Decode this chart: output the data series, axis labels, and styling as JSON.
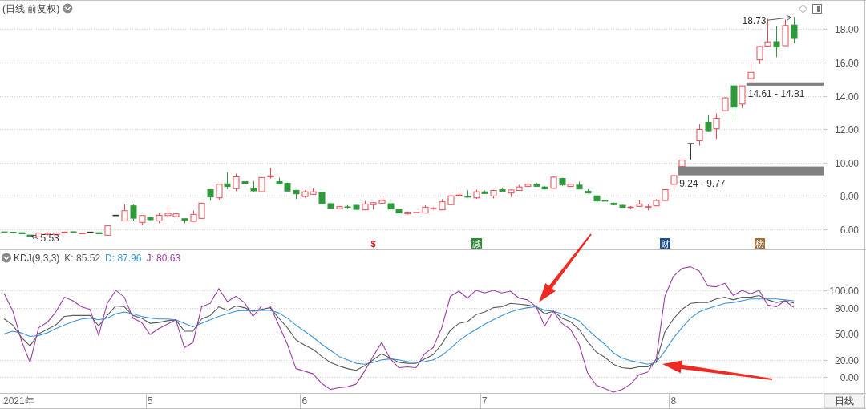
{
  "chart_data": [
    {
      "type": "candlestick",
      "title": "(日线 前复权)",
      "categories": [
        null,
        null,
        null,
        null,
        null,
        null,
        null,
        null,
        null,
        null,
        null,
        null,
        null,
        null,
        null,
        null,
        null,
        null,
        null,
        null,
        null,
        null,
        null,
        null,
        null,
        null,
        null,
        null,
        null,
        null,
        null,
        null,
        null,
        null,
        null,
        null,
        null,
        null,
        null,
        null,
        null,
        null,
        null,
        null,
        null,
        null,
        null,
        null,
        null,
        null,
        null,
        null,
        null,
        null,
        null,
        null,
        null,
        null,
        null,
        null,
        null,
        null,
        null,
        null,
        null,
        null,
        null,
        null,
        null,
        null,
        null,
        null,
        null,
        null,
        null,
        null,
        null,
        null,
        null,
        null,
        null,
        null,
        null,
        null,
        null,
        null,
        null,
        null,
        null,
        null,
        null,
        null,
        null,
        null,
        null,
        null
      ],
      "ohlc": [
        [
          5.85,
          5.87,
          5.82,
          5.83
        ],
        [
          5.83,
          5.84,
          5.8,
          5.81
        ],
        [
          5.8,
          5.82,
          5.72,
          5.74
        ],
        [
          5.66,
          5.7,
          5.53,
          5.58
        ],
        [
          5.56,
          5.8,
          5.54,
          5.78
        ],
        [
          5.7,
          5.82,
          5.64,
          5.77
        ],
        [
          5.68,
          5.8,
          5.66,
          5.78
        ],
        [
          5.8,
          5.85,
          5.79,
          5.84
        ],
        [
          5.86,
          5.88,
          5.83,
          5.84
        ],
        [
          5.75,
          5.78,
          5.73,
          5.77
        ],
        [
          5.84,
          5.86,
          5.82,
          5.84
        ],
        [
          5.8,
          5.82,
          5.72,
          5.74
        ],
        [
          5.65,
          6.23,
          5.64,
          6.21
        ],
        [
          6.85,
          6.85,
          6.85,
          6.85
        ],
        [
          6.51,
          7.49,
          6.48,
          7.12
        ],
        [
          7.41,
          7.49,
          6.53,
          6.67
        ],
        [
          6.42,
          6.85,
          6.26,
          6.83
        ],
        [
          6.71,
          6.74,
          6.55,
          6.58
        ],
        [
          6.51,
          6.98,
          6.37,
          6.85
        ],
        [
          6.83,
          7.33,
          6.69,
          6.96
        ],
        [
          6.77,
          6.95,
          6.61,
          6.93
        ],
        [
          6.64,
          6.66,
          6.37,
          6.55
        ],
        [
          6.48,
          7.12,
          6.45,
          6.9
        ],
        [
          6.66,
          7.58,
          6.64,
          7.57
        ],
        [
          8.38,
          8.4,
          7.73,
          7.94
        ],
        [
          7.89,
          8.72,
          7.77,
          8.7
        ],
        [
          8.73,
          9.42,
          8.41,
          8.57
        ],
        [
          8.44,
          9.34,
          8.3,
          9.15
        ],
        [
          8.86,
          8.91,
          8.57,
          8.76
        ],
        [
          8.47,
          8.89,
          8.25,
          8.31
        ],
        [
          8.26,
          9.13,
          8.24,
          9.11
        ],
        [
          9.15,
          9.69,
          9.05,
          9.21
        ],
        [
          8.86,
          9.1,
          8.7,
          8.73
        ],
        [
          8.76,
          8.8,
          8.28,
          8.3
        ],
        [
          8.34,
          8.38,
          7.81,
          8.13
        ],
        [
          7.97,
          8.34,
          7.89,
          8.25
        ],
        [
          8.1,
          8.46,
          8.06,
          8.25
        ],
        [
          8.22,
          8.26,
          7.46,
          7.54
        ],
        [
          7.54,
          7.56,
          7.25,
          7.27
        ],
        [
          7.24,
          7.38,
          7.22,
          7.36
        ],
        [
          7.35,
          7.46,
          7.22,
          7.33
        ],
        [
          7.44,
          7.46,
          7.19,
          7.2
        ],
        [
          7.17,
          7.7,
          7.15,
          7.52
        ],
        [
          7.48,
          7.64,
          7.2,
          7.6
        ],
        [
          7.57,
          8.01,
          7.55,
          7.73
        ],
        [
          7.54,
          7.73,
          7.09,
          7.22
        ],
        [
          7.22,
          7.24,
          6.88,
          6.98
        ],
        [
          6.93,
          7.07,
          6.9,
          7.04
        ],
        [
          6.99,
          7.03,
          6.96,
          7.02
        ],
        [
          6.98,
          7.44,
          6.96,
          7.33
        ],
        [
          7.24,
          7.33,
          7.19,
          7.26
        ],
        [
          7.17,
          7.81,
          7.15,
          7.65
        ],
        [
          7.48,
          8.05,
          7.46,
          8.01
        ],
        [
          8.03,
          8.3,
          7.98,
          8.06
        ],
        [
          7.96,
          8.34,
          7.9,
          7.94
        ],
        [
          7.89,
          8.38,
          7.82,
          8.25
        ],
        [
          8.25,
          8.33,
          8.12,
          8.15
        ],
        [
          8.01,
          8.38,
          7.85,
          8.33
        ],
        [
          8.38,
          8.45,
          8.25,
          8.28
        ],
        [
          8.18,
          8.4,
          7.93,
          8.36
        ],
        [
          8.33,
          8.66,
          8.31,
          8.54
        ],
        [
          8.58,
          8.78,
          8.56,
          8.7
        ],
        [
          8.7,
          8.78,
          8.55,
          8.58
        ],
        [
          8.54,
          8.58,
          8.4,
          8.42
        ],
        [
          8.46,
          9.18,
          8.44,
          9.13
        ],
        [
          9.05,
          9.1,
          8.62,
          8.66
        ],
        [
          8.57,
          8.74,
          8.54,
          8.7
        ],
        [
          8.65,
          8.86,
          8.4,
          8.42
        ],
        [
          8.28,
          8.41,
          8.15,
          8.18
        ],
        [
          8.01,
          8.03,
          7.62,
          7.7
        ],
        [
          7.72,
          7.82,
          7.59,
          7.69
        ],
        [
          7.57,
          7.6,
          7.45,
          7.48
        ],
        [
          7.44,
          7.47,
          7.3,
          7.32
        ],
        [
          7.31,
          7.4,
          7.25,
          7.34
        ],
        [
          7.38,
          7.73,
          7.36,
          7.52
        ],
        [
          7.33,
          7.5,
          7.14,
          7.36
        ],
        [
          7.41,
          7.81,
          7.39,
          7.73
        ],
        [
          7.73,
          8.4,
          7.71,
          8.38
        ],
        [
          8.7,
          9.24,
          8.34,
          9.22
        ],
        [
          9.77,
          10.17,
          9.77,
          10.15
        ],
        [
          11.15,
          11.15,
          10.19,
          11.15
        ],
        [
          11.31,
          12.31,
          11.02,
          11.99
        ],
        [
          12.42,
          12.84,
          11.87,
          11.91
        ],
        [
          12.04,
          12.95,
          11.43,
          12.66
        ],
        [
          13.11,
          13.91,
          13.08,
          13.88
        ],
        [
          14.6,
          14.61,
          12.55,
          13.32
        ],
        [
          13.51,
          14.61,
          13.27,
          14.6
        ],
        [
          15.04,
          16.05,
          14.81,
          15.41
        ],
        [
          16.16,
          16.99,
          15.92,
          16.96
        ],
        [
          16.99,
          18.62,
          16.95,
          17.24
        ],
        [
          17.25,
          18.17,
          16.32,
          16.93
        ],
        [
          17.01,
          18.57,
          16.99,
          18.22
        ],
        [
          18.25,
          18.73,
          17.16,
          17.44
        ],
        null,
        null,
        null
      ],
      "colors": [
        "#2e9a3c",
        "#2e9a3c",
        "#2e9a3c",
        "#2e9a3c",
        "#e84a55",
        "#e84a55",
        "#e84a55",
        "#e84a55",
        "#2e9a3c",
        "#e84a55",
        "#333333",
        "#2e9a3c",
        "#e84a55",
        "#333333",
        "#e84a55",
        "#2e9a3c",
        "#e84a55",
        "#2e9a3c",
        "#e84a55",
        "#e84a55",
        "#e84a55",
        "#2e9a3c",
        "#e84a55",
        "#e84a55",
        "#2e9a3c",
        "#e84a55",
        "#2e9a3c",
        "#e84a55",
        "#2e9a3c",
        "#2e9a3c",
        "#e84a55",
        "#e84a55",
        "#2e9a3c",
        "#2e9a3c",
        "#2e9a3c",
        "#e84a55",
        "#e84a55",
        "#2e9a3c",
        "#2e9a3c",
        "#e84a55",
        "#2e9a3c",
        "#2e9a3c",
        "#e84a55",
        "#e84a55",
        "#e84a55",
        "#2e9a3c",
        "#2e9a3c",
        "#e84a55",
        "#e84a55",
        "#e84a55",
        "#e84a55",
        "#e84a55",
        "#e84a55",
        "#e84a55",
        "#2e9a3c",
        "#e84a55",
        "#2e9a3c",
        "#e84a55",
        "#2e9a3c",
        "#e84a55",
        "#e84a55",
        "#e84a55",
        "#2e9a3c",
        "#2e9a3c",
        "#e84a55",
        "#2e9a3c",
        "#e84a55",
        "#2e9a3c",
        "#2e9a3c",
        "#2e9a3c",
        "#2e9a3c",
        "#2e9a3c",
        "#2e9a3c",
        "#e84a55",
        "#e84a55",
        "#e84a55",
        "#e84a55",
        "#e84a55",
        "#e84a55",
        "#e84a55",
        "#333333",
        "#e84a55",
        "#2e9a3c",
        "#e84a55",
        "#e84a55",
        "#2e9a3c",
        "#e84a55",
        "#e84a55",
        "#e84a55",
        "#e84a55",
        "#2e9a3c",
        "#e84a55",
        "#2e9a3c",
        null,
        null,
        null
      ],
      "ylim": [
        4.8,
        19.7
      ],
      "yticks": [
        {
          "value": 6,
          "label": "6.00"
        },
        {
          "value": 8,
          "label": "8.00"
        },
        {
          "value": 10,
          "label": "10.00"
        },
        {
          "value": 12,
          "label": "12.00"
        },
        {
          "value": 14,
          "label": "14.00"
        },
        {
          "value": 16,
          "label": "16.00"
        },
        {
          "value": 18,
          "label": "18.00"
        }
      ],
      "grid": "y",
      "tick_labels": "y",
      "bands": [
        {
          "axis": "y",
          "from": 9.24,
          "to": 9.77,
          "label": "9.24 - 9.77",
          "color": "#808080"
        },
        {
          "axis": "y",
          "from": 14.61,
          "to": 14.81,
          "label": "14.61 - 14.81",
          "color": "#808080"
        }
      ],
      "annotations": [
        "18.73",
        "5.53",
        "$",
        "减",
        "财",
        "榜"
      ]
    },
    {
      "type": "line",
      "title": "KDJ(9,3,3)",
      "xlabel": "2021年",
      "categories": [
        null,
        null,
        null,
        null,
        null,
        null,
        null,
        null,
        null,
        null,
        null,
        null,
        null,
        null,
        null,
        null,
        null,
        "5",
        null,
        null,
        null,
        null,
        null,
        null,
        null,
        null,
        null,
        null,
        null,
        null,
        null,
        null,
        null,
        null,
        null,
        "6",
        null,
        null,
        null,
        null,
        null,
        null,
        null,
        null,
        null,
        null,
        null,
        null,
        null,
        null,
        null,
        null,
        null,
        null,
        null,
        null,
        "7",
        null,
        null,
        null,
        null,
        null,
        null,
        null,
        null,
        null,
        null,
        null,
        null,
        null,
        null,
        null,
        null,
        null,
        null,
        null,
        null,
        null,
        "8",
        null,
        null,
        null,
        null,
        null,
        null,
        null,
        null,
        null,
        null,
        null,
        null,
        null,
        null,
        null,
        null,
        null
      ],
      "series": [
        {
          "name": "K: 85.52",
          "color": "#5a5a5a",
          "values": [
            67,
            60,
            46,
            36,
            50,
            55,
            60,
            70,
            71,
            71,
            71,
            59,
            71,
            82,
            81,
            71,
            68,
            62,
            63,
            65,
            66,
            53,
            53,
            67,
            71,
            81,
            77,
            82,
            80,
            76,
            78,
            80,
            68,
            57,
            43,
            37,
            32,
            24,
            17,
            13,
            10,
            8,
            13,
            20,
            27,
            22,
            17,
            16,
            16,
            21,
            26,
            38,
            54,
            62,
            64,
            72,
            75,
            80,
            81,
            85,
            84,
            83,
            81,
            73,
            76,
            68,
            64,
            55,
            41,
            29,
            23,
            15,
            11,
            10,
            12,
            12,
            18,
            52,
            67,
            78,
            85,
            86,
            86,
            90,
            92,
            89,
            92,
            92,
            94,
            89,
            86,
            88,
            85.52,
            null,
            null,
            null
          ]
        },
        {
          "name": "D: 87.96",
          "color": "#3a93d6",
          "values": [
            50,
            53,
            51,
            47,
            48,
            51,
            56,
            60,
            64,
            67,
            68,
            66,
            68,
            73,
            75,
            73,
            70,
            68,
            67,
            67,
            66,
            62,
            58,
            62,
            66,
            70,
            73,
            76,
            77,
            76,
            77,
            77,
            74,
            68,
            60,
            53,
            46,
            38,
            31,
            24,
            20,
            16,
            15,
            17,
            20,
            21,
            20,
            18,
            17,
            18,
            20,
            25,
            33,
            42,
            49,
            55,
            61,
            66,
            71,
            75,
            78,
            80,
            81,
            77,
            76,
            73,
            69,
            65,
            55,
            46,
            38,
            28,
            22,
            19,
            17,
            15,
            17,
            30,
            45,
            57,
            68,
            75,
            79,
            82,
            85,
            86,
            88,
            90,
            90,
            90,
            90,
            89,
            87.96,
            null,
            null,
            null
          ]
        },
        {
          "name": "J: 80.63",
          "color": "#9b3ea3",
          "values": [
            96,
            76,
            42,
            17,
            57,
            63,
            75,
            92,
            88,
            81,
            78,
            48,
            85,
            100,
            92,
            68,
            63,
            49,
            56,
            61,
            66,
            34,
            40,
            81,
            85,
            102,
            87,
            93,
            86,
            70,
            82,
            82,
            60,
            38,
            10,
            7,
            4,
            -7,
            -14,
            -12,
            -11,
            -8,
            7,
            24,
            40,
            21,
            11,
            12,
            11,
            27,
            34,
            57,
            93,
            99,
            91,
            100,
            97,
            100,
            97,
            99,
            91,
            89,
            81,
            59,
            76,
            62,
            55,
            38,
            5,
            -9,
            -13,
            -17,
            -14,
            -8,
            3,
            6,
            21,
            93,
            116,
            125,
            127,
            122,
            105,
            104,
            108,
            94,
            100,
            96,
            100,
            83,
            81,
            88,
            80.63,
            null,
            null,
            null
          ]
        }
      ],
      "ylim": [
        -18,
        146
      ],
      "yticks": [
        {
          "value": 0,
          "label": "0.00"
        },
        {
          "value": 20,
          "label": "20.00"
        },
        {
          "value": 50,
          "label": "50.00"
        },
        {
          "value": 80,
          "label": "80.00"
        },
        {
          "value": 100,
          "label": "100.00"
        }
      ],
      "grid": "y",
      "legend": "top left",
      "annotations": [
        "日线"
      ]
    }
  ]
}
